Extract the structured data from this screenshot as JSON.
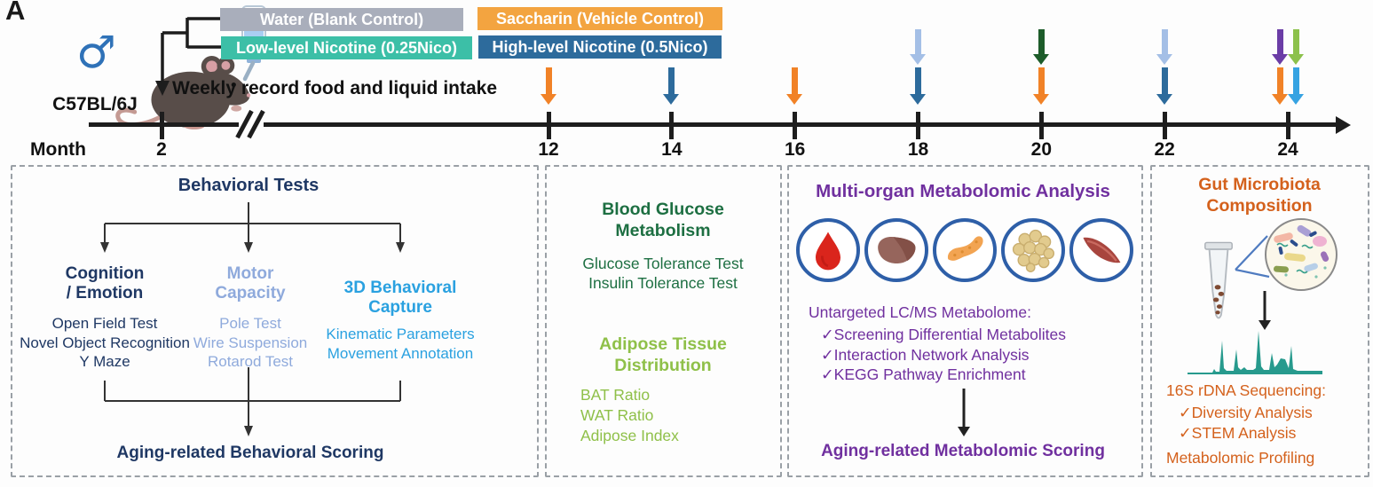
{
  "panel_label": "A",
  "mouse": {
    "strain": "C57BL/6J",
    "sex_symbol": "♂"
  },
  "legend": {
    "water": {
      "label": "Water (Blank Control)",
      "color": "#a9aebb"
    },
    "low_nicotine": {
      "label": "Low-level Nicotine (0.25Nico)",
      "color": "#3cbfa7"
    },
    "saccharin": {
      "label": "Saccharin (Vehicle Control)",
      "color": "#f3a440"
    },
    "high_nicotine": {
      "label": "High-level Nicotine (0.5Nico)",
      "color": "#2d6b9c"
    }
  },
  "weekly_note": "Weekly record food and liquid intake",
  "timeline": {
    "axis_label": "Month",
    "months": [
      2,
      12,
      14,
      16,
      18,
      20,
      22,
      24
    ],
    "arrow_colors": {
      "orange": "#f18227",
      "steel_blue": "#2d6b9c",
      "light_blue": "#a4bfe6",
      "dark_green": "#1d5c2a",
      "purple": "#6b3da6",
      "yellow_green": "#8cc14b",
      "sky_blue": "#36a3e2"
    },
    "arrows": [
      {
        "month": 12,
        "bottom": [
          "orange"
        ]
      },
      {
        "month": 14,
        "bottom": [
          "steel_blue"
        ]
      },
      {
        "month": 16,
        "bottom": [
          "orange"
        ]
      },
      {
        "month": 18,
        "top": [
          "light_blue"
        ],
        "bottom": [
          "steel_blue"
        ]
      },
      {
        "month": 20,
        "top": [
          "dark_green"
        ],
        "bottom": [
          "orange"
        ]
      },
      {
        "month": 22,
        "top": [
          "light_blue"
        ],
        "bottom": [
          "steel_blue"
        ]
      },
      {
        "month": 24,
        "top": [
          "purple",
          "yellow_green"
        ],
        "bottom": [
          "orange",
          "sky_blue"
        ]
      }
    ]
  },
  "behavioral": {
    "title": "Behavioral Tests",
    "title_color": "#1f3864",
    "columns": [
      {
        "header_lines": [
          "Cognition",
          "/ Emotion"
        ],
        "items": [
          "Open Field Test",
          "Novel Object Recognition",
          "Y Maze"
        ],
        "color": "#1f3864"
      },
      {
        "header_lines": [
          "Motor",
          "Capacity"
        ],
        "items": [
          "Pole Test",
          "Wire Suspension",
          "Rotarod Test"
        ],
        "color": "#8faadc"
      },
      {
        "header_lines": [
          "3D Behavioral",
          "Capture"
        ],
        "items": [
          "Kinematic Parameters",
          "Movement Annotation"
        ],
        "color": "#2aa1e0"
      }
    ],
    "result": "Aging-related Behavioral Scoring"
  },
  "glucose": {
    "section1": {
      "title_lines": [
        "Blood Glucose",
        "Metabolism"
      ],
      "items": [
        "Glucose Tolerance Test",
        "Insulin Tolerance Test"
      ],
      "color": "#1d6f42"
    },
    "section2": {
      "title_lines": [
        "Adipose Tissue",
        "Distribution"
      ],
      "items": [
        "BAT Ratio",
        "WAT Ratio",
        "Adipose Index"
      ],
      "color": "#8fc049"
    }
  },
  "metabolomic": {
    "title": "Multi-organ Metabolomic Analysis",
    "color": "#70309f",
    "organs": [
      "blood",
      "liver",
      "pancreas",
      "adipose-tissue",
      "muscle"
    ],
    "subtitle": "Untargeted LC/MS Metabolome:",
    "checklist": [
      "✓Screening Differential Metabolites",
      "✓Interaction Network Analysis",
      "✓KEGG Pathway Enrichment"
    ],
    "result": "Aging-related Metabolomic Scoring"
  },
  "microbiota": {
    "title_lines": [
      "Gut Microbiota",
      "Composition"
    ],
    "color": "#d4611c",
    "subtitle": "16S rDNA Sequencing:",
    "checklist": [
      "✓Diversity Analysis",
      "✓STEM Analysis"
    ],
    "footer": "Metabolomic Profiling"
  }
}
